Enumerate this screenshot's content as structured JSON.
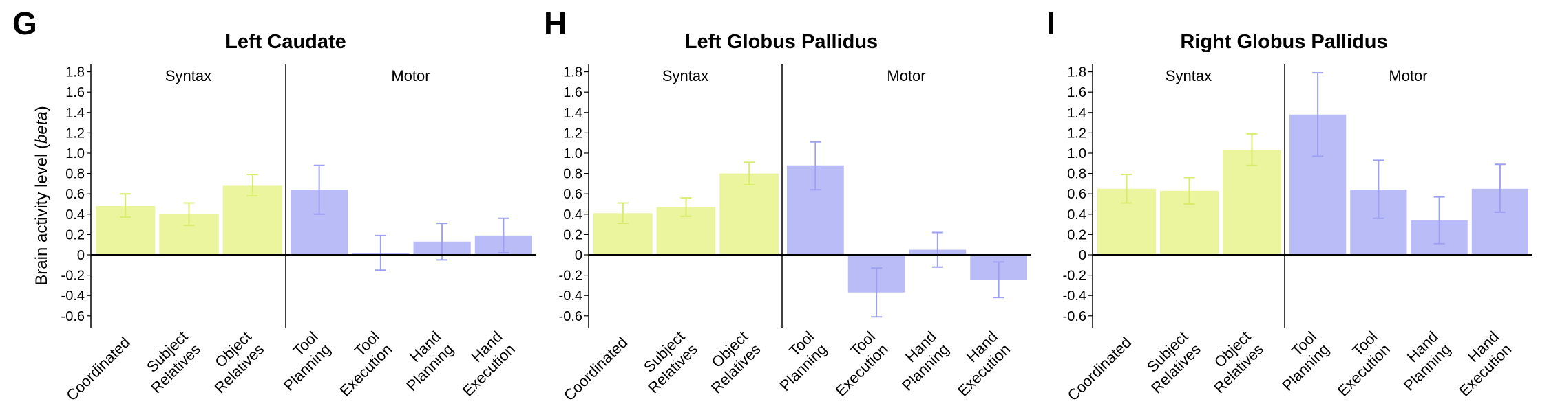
{
  "chart_data": [
    {
      "type": "bar",
      "panel_letter": "G",
      "title": "Left Caudate",
      "ylabel": "Brain activity level (beta)",
      "ylim": [
        -0.7,
        1.9
      ],
      "yticks": [
        "1.8",
        "1.6",
        "1.4",
        "1.2",
        "1.0",
        "0.8",
        "0.6",
        "0.4",
        "0.2",
        "0",
        "-0.2",
        "-0.4",
        "-0.6"
      ],
      "groups": [
        {
          "name": "Syntax",
          "color": "#eaf59e",
          "error_color": "#d8ec6e",
          "categories": [
            [
              "Coordinated"
            ],
            [
              "Subject",
              "Relatives"
            ],
            [
              "Object",
              "Relatives"
            ]
          ],
          "values": [
            0.48,
            0.4,
            0.68
          ],
          "err_low": [
            0.37,
            0.29,
            0.58
          ],
          "err_high": [
            0.6,
            0.51,
            0.79
          ]
        },
        {
          "name": "Motor",
          "color": "#babcf7",
          "error_color": "#9d9ff0",
          "categories": [
            [
              "Tool",
              "Planning"
            ],
            [
              "Tool",
              "Execution"
            ],
            [
              "Hand",
              "Planning"
            ],
            [
              "Hand",
              "Execution"
            ]
          ],
          "values": [
            0.64,
            0.02,
            0.13,
            0.19
          ],
          "err_low": [
            0.4,
            -0.15,
            -0.05,
            0.02
          ],
          "err_high": [
            0.88,
            0.19,
            0.31,
            0.36
          ]
        }
      ]
    },
    {
      "type": "bar",
      "panel_letter": "H",
      "title": "Left Globus Pallidus",
      "ylim": [
        -0.7,
        1.9
      ],
      "yticks": [
        "1.8",
        "1.6",
        "1.4",
        "1.2",
        "1.0",
        "0.8",
        "0.6",
        "0.4",
        "0.2",
        "0",
        "-0.2",
        "-0.4",
        "-0.6"
      ],
      "groups": [
        {
          "name": "Syntax",
          "color": "#eaf59e",
          "error_color": "#d8ec6e",
          "categories": [
            [
              "Coordinated"
            ],
            [
              "Subject",
              "Relatives"
            ],
            [
              "Object",
              "Relatives"
            ]
          ],
          "values": [
            0.41,
            0.47,
            0.8
          ],
          "err_low": [
            0.31,
            0.38,
            0.69
          ],
          "err_high": [
            0.51,
            0.56,
            0.91
          ]
        },
        {
          "name": "Motor",
          "color": "#babcf7",
          "error_color": "#9d9ff0",
          "categories": [
            [
              "Tool",
              "Planning"
            ],
            [
              "Tool",
              "Execution"
            ],
            [
              "Hand",
              "Planning"
            ],
            [
              "Hand",
              "Execution"
            ]
          ],
          "values": [
            0.88,
            -0.37,
            0.05,
            -0.25
          ],
          "err_low": [
            0.64,
            -0.61,
            -0.12,
            -0.42
          ],
          "err_high": [
            1.11,
            -0.13,
            0.22,
            -0.07
          ]
        }
      ]
    },
    {
      "type": "bar",
      "panel_letter": "I",
      "title": "Right Globus Pallidus",
      "ylim": [
        -0.7,
        1.9
      ],
      "yticks": [
        "1.8",
        "1.6",
        "1.4",
        "1.2",
        "1.0",
        "0.8",
        "0.6",
        "0.4",
        "0.2",
        "0",
        "-0.2",
        "-0.4",
        "-0.6"
      ],
      "groups": [
        {
          "name": "Syntax",
          "color": "#eaf59e",
          "error_color": "#d8ec6e",
          "categories": [
            [
              "Coordinated"
            ],
            [
              "Subject",
              "Relatives"
            ],
            [
              "Object",
              "Relatives"
            ]
          ],
          "values": [
            0.65,
            0.63,
            1.03
          ],
          "err_low": [
            0.51,
            0.5,
            0.88
          ],
          "err_high": [
            0.79,
            0.76,
            1.19
          ]
        },
        {
          "name": "Motor",
          "color": "#babcf7",
          "error_color": "#9d9ff0",
          "categories": [
            [
              "Tool",
              "Planning"
            ],
            [
              "Tool",
              "Execution"
            ],
            [
              "Hand",
              "Planning"
            ],
            [
              "Hand",
              "Execution"
            ]
          ],
          "values": [
            1.38,
            0.64,
            0.34,
            0.65
          ],
          "err_low": [
            0.97,
            0.36,
            0.11,
            0.42
          ],
          "err_high": [
            1.79,
            0.93,
            0.57,
            0.89
          ]
        }
      ]
    }
  ]
}
